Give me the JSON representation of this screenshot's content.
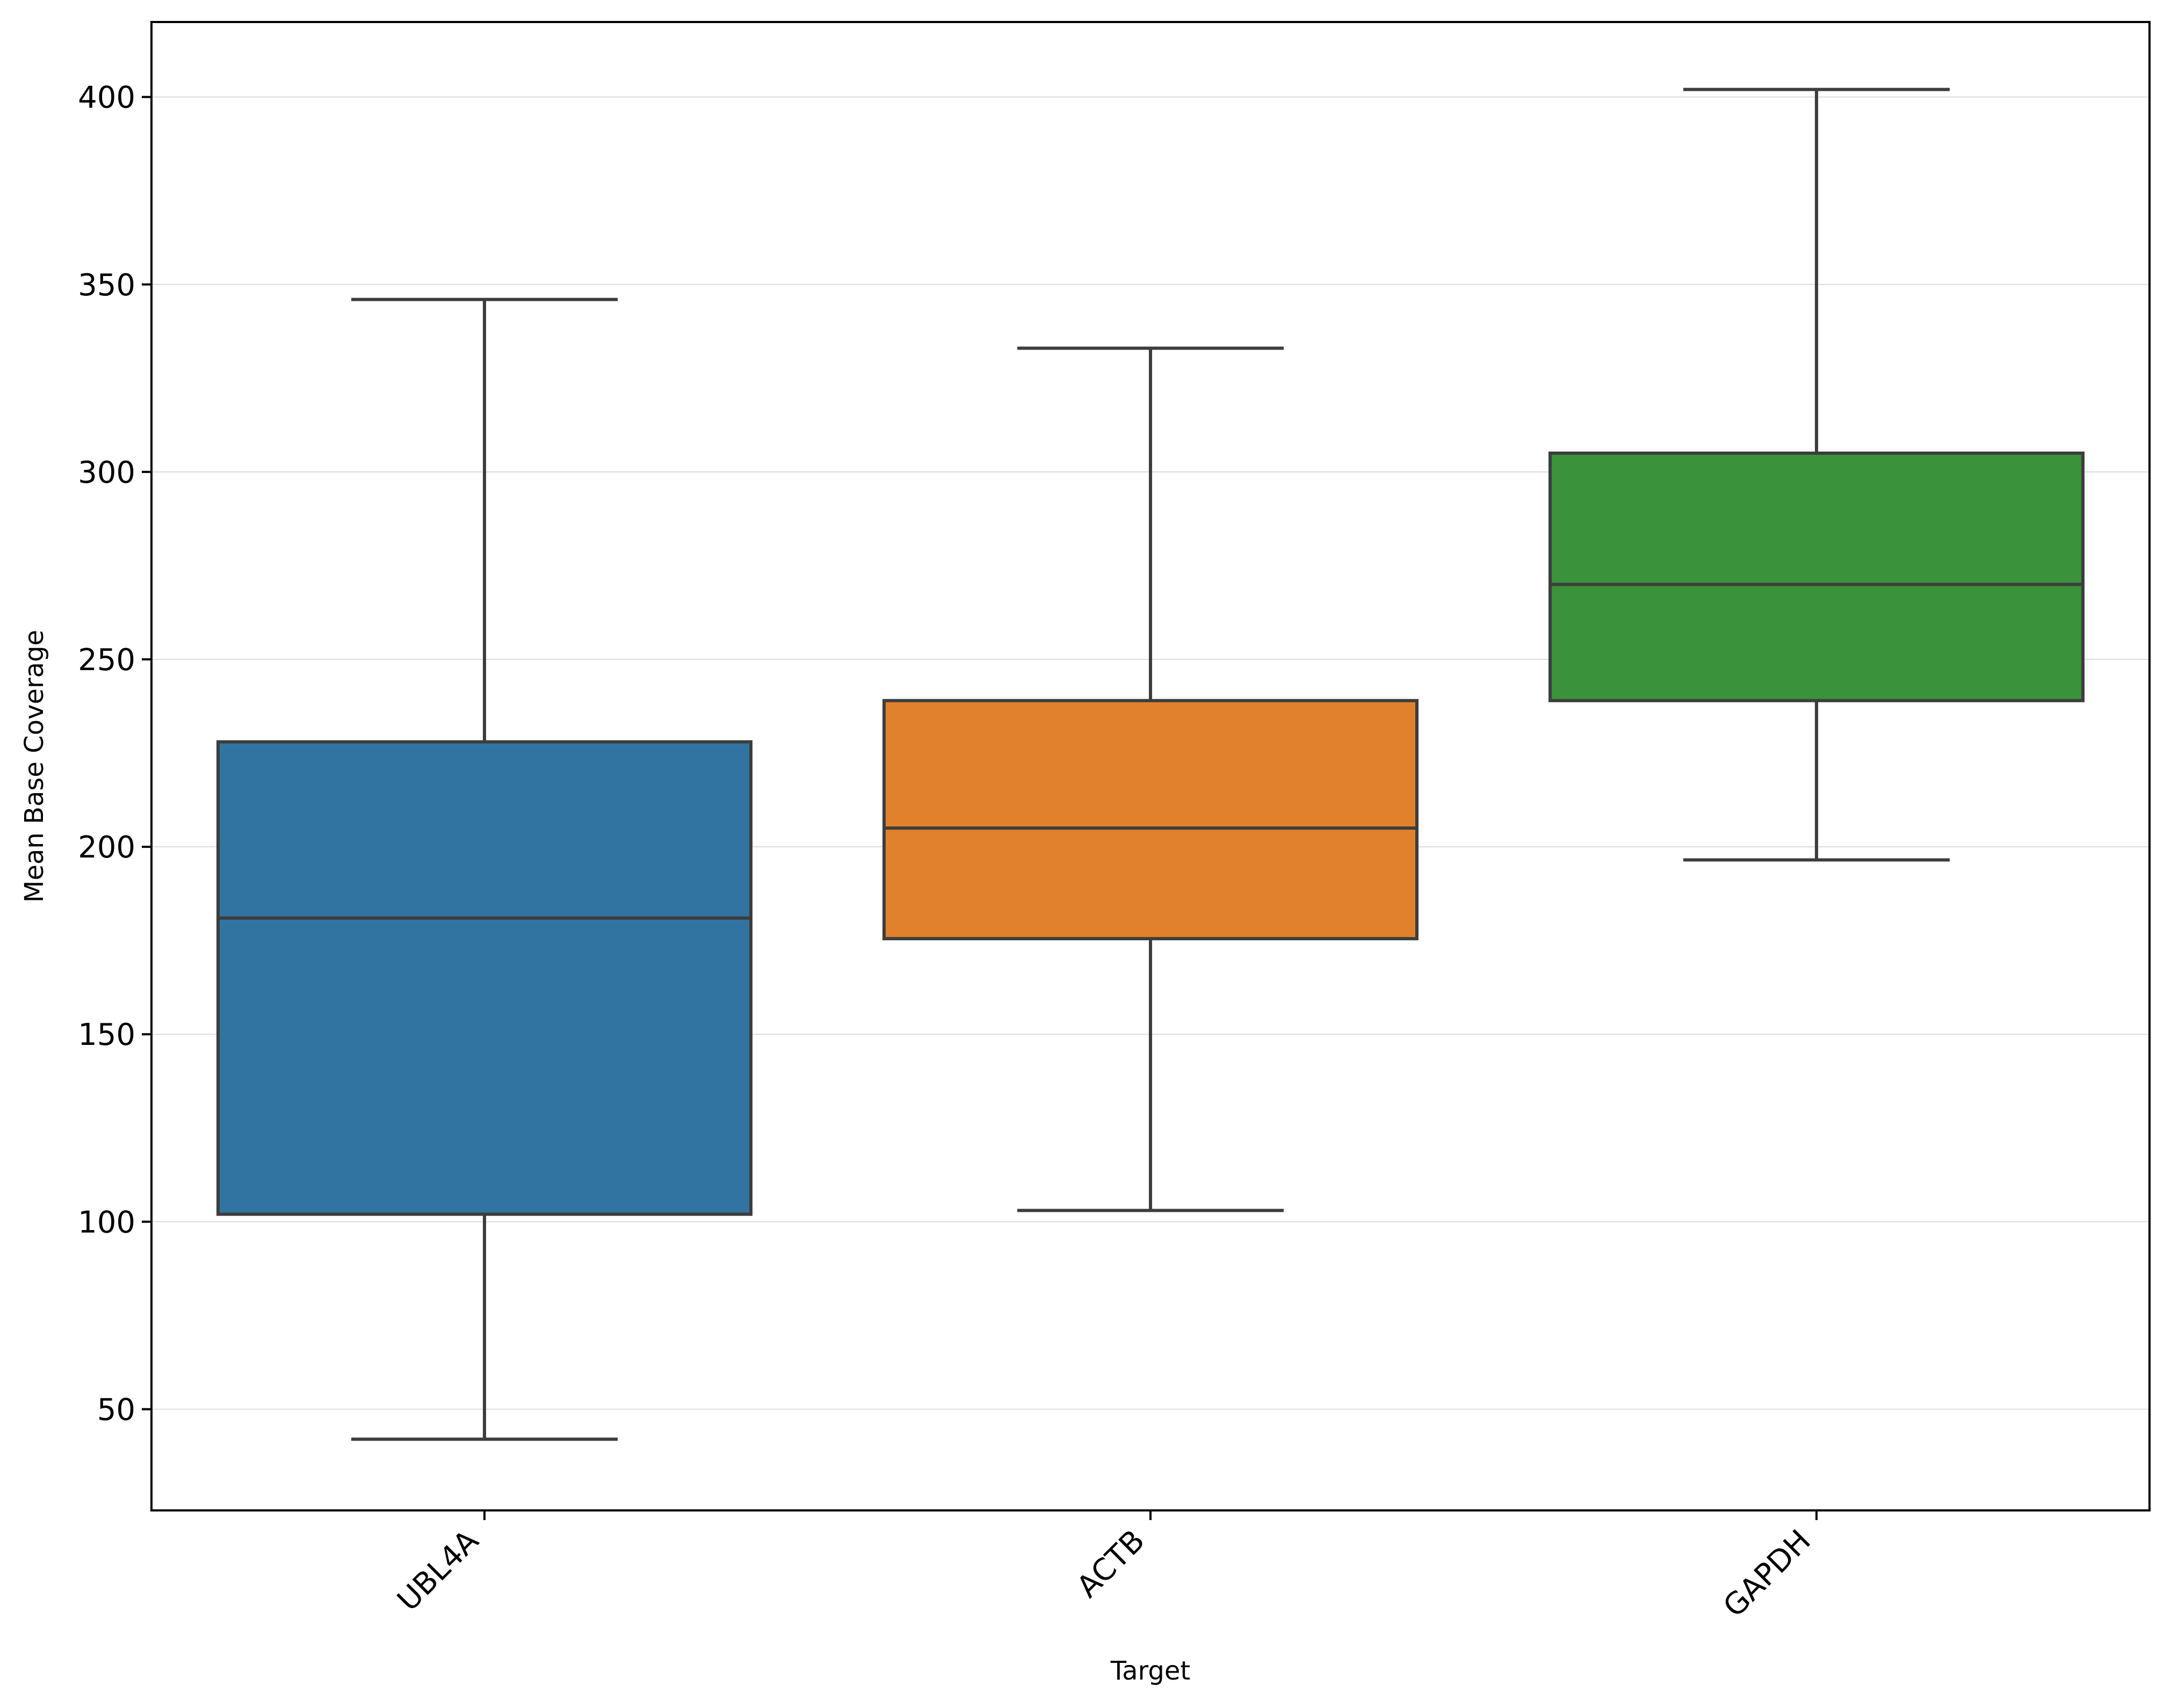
{
  "chart_data": {
    "type": "box",
    "xlabel": "Target",
    "ylabel": "Mean Base Coverage",
    "ylim": [
      23,
      420
    ],
    "yticks": [
      50,
      100,
      150,
      200,
      250,
      300,
      350,
      400
    ],
    "grid": "horizontal",
    "categories": [
      "UBL4A",
      "ACTB",
      "GAPDH"
    ],
    "boxes": [
      {
        "category": "UBL4A",
        "whisker_low": 42,
        "q1": 102,
        "median": 181,
        "q3": 228,
        "whisker_high": 346,
        "color": "#3274a1"
      },
      {
        "category": "ACTB",
        "whisker_low": 103,
        "q1": 175.5,
        "median": 205,
        "q3": 239,
        "whisker_high": 333,
        "color": "#e1812c"
      },
      {
        "category": "GAPDH",
        "whisker_low": 196.5,
        "q1": 239,
        "median": 270,
        "q3": 305,
        "whisker_high": 402,
        "color": "#3a923a"
      }
    ],
    "line_color": "#3d3d3d"
  }
}
